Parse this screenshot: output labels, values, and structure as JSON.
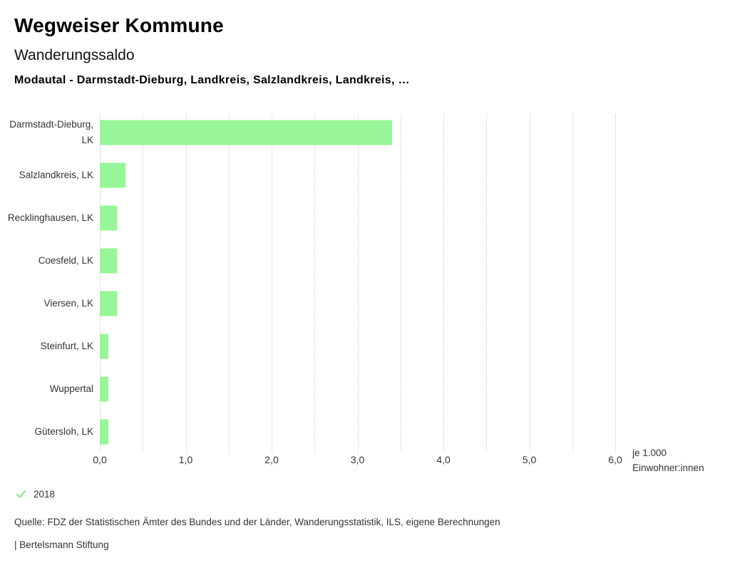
{
  "header": {
    "app_title": "Wegweiser Kommune",
    "chart_title": "Wanderungssaldo",
    "chart_subtitle": "Modautal - Darmstadt-Dieburg, Landkreis, Salzlandkreis, Landkreis, …"
  },
  "chart_data": {
    "type": "bar",
    "orientation": "horizontal",
    "title": "Wanderungssaldo",
    "categories": [
      "Darmstadt-Dieburg, LK",
      "Salzlandkreis, LK",
      "Recklinghausen, LK",
      "Coesfeld, LK",
      "Viersen, LK",
      "Steinfurt, LK",
      "Wuppertal",
      "Gütersloh, LK"
    ],
    "values": [
      3.4,
      0.3,
      0.2,
      0.2,
      0.2,
      0.1,
      0.1,
      0.1
    ],
    "xlabel": "je 1.000 Einwohner:innen",
    "unit_label_lines": [
      "je 1.000",
      "Einwohner:innen"
    ],
    "x_ticks": [
      "0,0",
      "1,0",
      "2,0",
      "3,0",
      "4,0",
      "5,0",
      "6,0"
    ],
    "xlim": [
      0,
      6
    ],
    "gridline_step": 0.5,
    "grid": "dotted-vertical",
    "legend_position": "bottom-left"
  },
  "legend": {
    "year": "2018",
    "check_icon": "check-icon"
  },
  "footer": {
    "source": "Quelle: FDZ der Statistischen Ämter des Bundes und der Länder, Wanderungsstatistik, ILS, eigene Berechnungen",
    "attribution": "| Bertelsmann Stiftung"
  },
  "colors": {
    "bar_green": "#98f598",
    "check_green": "#82e882",
    "gridline_gray": "#cccccc",
    "text_dark": "#333333"
  }
}
